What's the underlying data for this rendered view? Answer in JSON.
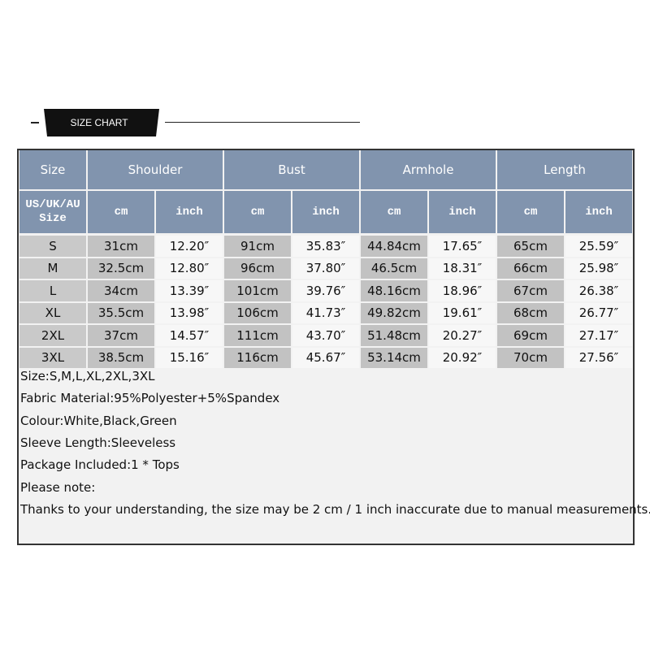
{
  "header": {
    "title": "SIZE CHART"
  },
  "table": {
    "groups": [
      "Size",
      "Shoulder",
      "Bust",
      "Armhole",
      "Length"
    ],
    "size_label": [
      "US/UK/AU",
      "Size"
    ],
    "units": [
      "cm",
      "inch",
      "cm",
      "inch",
      "cm",
      "inch",
      "cm",
      "inch"
    ],
    "rows": [
      [
        "S",
        "31cm",
        "12.20″",
        "91cm",
        "35.83″",
        "44.84cm",
        "17.65″",
        "65cm",
        "25.59″"
      ],
      [
        "M",
        "32.5cm",
        "12.80″",
        "96cm",
        "37.80″",
        "46.5cm",
        "18.31″",
        "66cm",
        "25.98″"
      ],
      [
        "L",
        "34cm",
        "13.39″",
        "101cm",
        "39.76″",
        "48.16cm",
        "18.96″",
        "67cm",
        "26.38″"
      ],
      [
        "XL",
        "35.5cm",
        "13.98″",
        "106cm",
        "41.73″",
        "49.82cm",
        "19.61″",
        "68cm",
        "26.77″"
      ],
      [
        "2XL",
        "37cm",
        "14.57″",
        "111cm",
        "43.70″",
        "51.48cm",
        "20.27″",
        "69cm",
        "27.17″"
      ],
      [
        "3XL",
        "38.5cm",
        "15.16″",
        "116cm",
        "45.67″",
        "53.14cm",
        "20.92″",
        "70cm",
        "27.56″"
      ]
    ]
  },
  "notes": [
    "Size:S,M,L,XL,2XL,3XL",
    "Fabric Material:95%Polyester+5%Spandex",
    "Colour:White,Black,Green",
    "Sleeve Length:Sleeveless",
    "Package Included:1 * Tops",
    "Please note:",
    "Thanks to your understanding, the size may be 2 cm / 1 inch inaccurate due to manual measurements."
  ]
}
